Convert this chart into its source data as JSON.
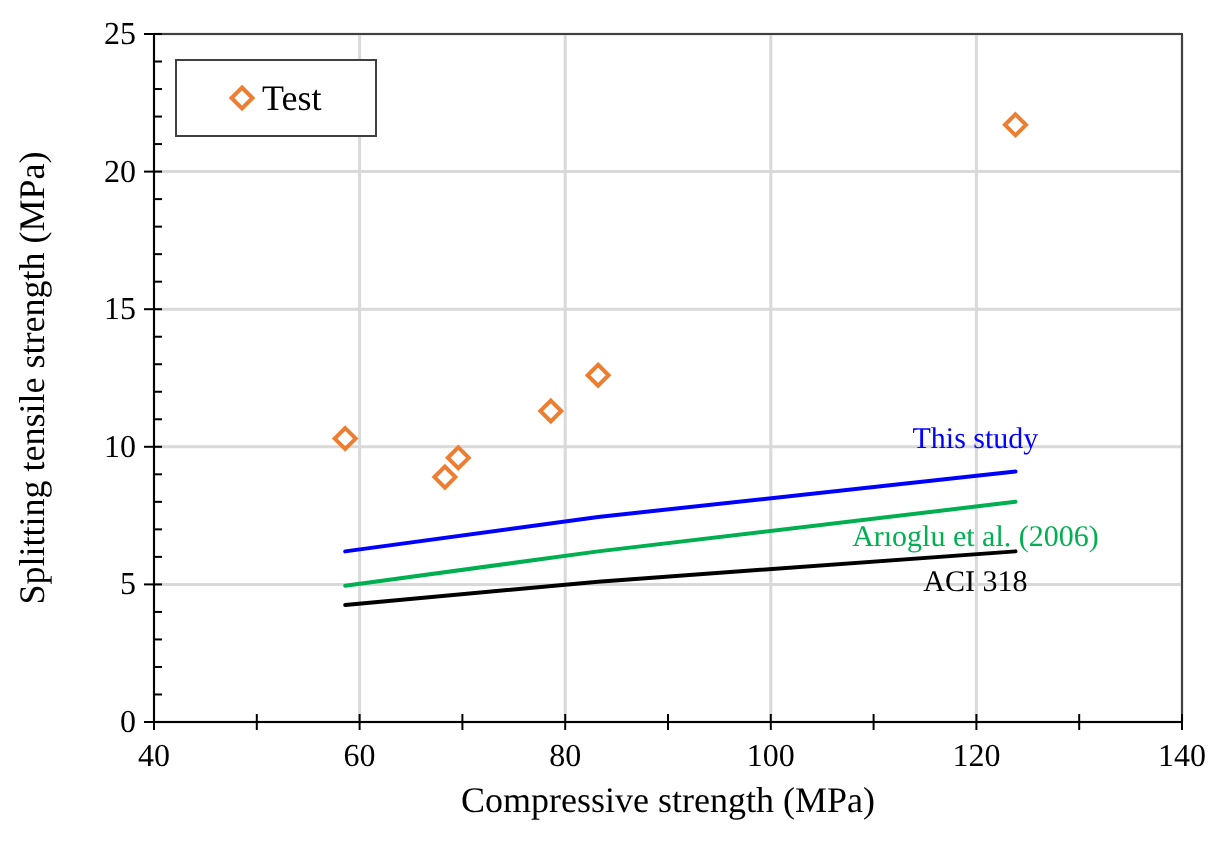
{
  "chart_data": {
    "type": "scatter",
    "xlabel": "Compressive strength (MPa)",
    "ylabel": "Splitting tensile strength (MPa)",
    "xlim": [
      40,
      140
    ],
    "ylim": [
      0,
      25
    ],
    "xticks": [
      40,
      {
        "value": 50,
        "label": null
      },
      60,
      {
        "value": 70,
        "label": null
      },
      80,
      {
        "value": 90,
        "label": null
      },
      100,
      {
        "value": 110,
        "label": null
      },
      120,
      {
        "value": 130,
        "label": null
      },
      140
    ],
    "yticks": [
      0,
      {
        "value": 1,
        "label": null
      },
      {
        "value": 2,
        "label": null
      },
      {
        "value": 3,
        "label": null
      },
      {
        "value": 4,
        "label": null
      },
      5,
      {
        "value": 6,
        "label": null
      },
      {
        "value": 7,
        "label": null
      },
      {
        "value": 8,
        "label": null
      },
      {
        "value": 9,
        "label": null
      },
      10,
      {
        "value": 11,
        "label": null
      },
      {
        "value": 12,
        "label": null
      },
      {
        "value": 13,
        "label": null
      },
      {
        "value": 14,
        "label": null
      },
      15,
      {
        "value": 16,
        "label": null
      },
      {
        "value": 17,
        "label": null
      },
      {
        "value": 18,
        "label": null
      },
      {
        "value": 19,
        "label": null
      },
      20,
      {
        "value": 21,
        "label": null
      },
      {
        "value": 22,
        "label": null
      },
      {
        "value": 23,
        "label": null
      },
      {
        "value": 24,
        "label": null
      },
      25
    ],
    "grid": true,
    "legend": "top left",
    "series": [
      {
        "name": "Test",
        "marker": "diamond",
        "color": "#ed7d31",
        "x": [
          58.6,
          68.3,
          69.6,
          78.6,
          83.2,
          123.8
        ],
        "values": [
          10.3,
          8.9,
          9.6,
          11.3,
          12.6,
          21.7
        ]
      },
      {
        "name": "This study",
        "type": "line",
        "marker": "none",
        "color": "#0000ff",
        "x": [
          58.6,
          83.2,
          123.8
        ],
        "values": [
          6.2,
          7.45,
          9.1
        ]
      },
      {
        "name": "Arıoglu et al. (2006)",
        "type": "line",
        "marker": "none",
        "color": "#00b050",
        "x": [
          58.6,
          83.2,
          123.8
        ],
        "values": [
          4.95,
          6.2,
          8.0
        ]
      },
      {
        "name": "ACI 318",
        "type": "line",
        "marker": "none",
        "color": "#000000",
        "x": [
          58.6,
          83.2,
          123.8
        ],
        "values": [
          4.25,
          5.1,
          6.2
        ]
      }
    ]
  }
}
